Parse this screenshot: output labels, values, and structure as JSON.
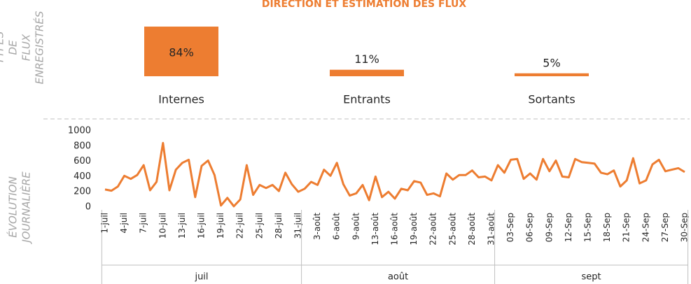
{
  "title": "DIRECTION ET ESTIMATION DES FLUX",
  "chart_data": [
    {
      "type": "bar",
      "label": "TYPES DE FLUX ENREGISTRÉS",
      "categories": [
        "Internes",
        "Entrants",
        "Sortants"
      ],
      "values": [
        84,
        11,
        5
      ],
      "value_labels": [
        "84%",
        "11%",
        "5%"
      ],
      "color": "#ed7d31"
    },
    {
      "type": "line",
      "label": "ÉVOLUTION JOURNALIÈRE",
      "groups": [
        {
          "name": "juil",
          "categories": [
            "1-juil",
            null,
            null,
            "4-juil",
            null,
            null,
            "7-juil",
            null,
            null,
            "10-juil",
            null,
            null,
            "13-juil",
            null,
            null,
            "16-juil",
            null,
            null,
            "19-juil",
            null,
            null,
            "22-juil",
            null,
            null,
            "25-juil",
            null,
            null,
            "28-juil",
            null,
            null,
            "31-juil"
          ]
        },
        {
          "name": "août",
          "categories": [
            null,
            null,
            "3-août",
            null,
            null,
            "6-août",
            null,
            null,
            "9-août",
            null,
            null,
            "13-août",
            null,
            null,
            "16-août",
            null,
            null,
            "19-août",
            null,
            null,
            "22-août",
            null,
            null,
            "25-août",
            null,
            null,
            "28-août",
            null,
            null,
            "31-août"
          ]
        },
        {
          "name": "sept",
          "categories": [
            null,
            null,
            "03-Sep",
            null,
            null,
            "06-Sep",
            null,
            null,
            "09-Sep",
            null,
            null,
            "12-Sep",
            null,
            null,
            "15-Sep",
            null,
            null,
            "18-Sep",
            null,
            null,
            "21-Sep",
            null,
            null,
            "24-Sep",
            null,
            null,
            "27-Sep",
            null,
            null,
            "30-Sep"
          ]
        }
      ],
      "values": [
        230,
        215,
        270,
        410,
        370,
        420,
        550,
        220,
        330,
        840,
        220,
        490,
        580,
        620,
        130,
        540,
        610,
        420,
        20,
        120,
        10,
        100,
        550,
        160,
        290,
        250,
        290,
        210,
        450,
        300,
        200,
        240,
        330,
        290,
        490,
        410,
        580,
        300,
        150,
        180,
        290,
        90,
        400,
        130,
        200,
        110,
        240,
        220,
        340,
        320,
        160,
        180,
        140,
        440,
        360,
        420,
        420,
        480,
        390,
        400,
        350,
        550,
        450,
        620,
        630,
        370,
        440,
        360,
        630,
        470,
        610,
        400,
        390,
        630,
        590,
        580,
        570,
        450,
        430,
        480,
        270,
        350,
        640,
        310,
        350,
        560,
        620,
        470,
        490,
        510,
        460
      ],
      "ylim": [
        0,
        1000
      ],
      "yticks": [
        0,
        200,
        400,
        600,
        800,
        1000
      ],
      "color": "#ed7d31"
    }
  ]
}
